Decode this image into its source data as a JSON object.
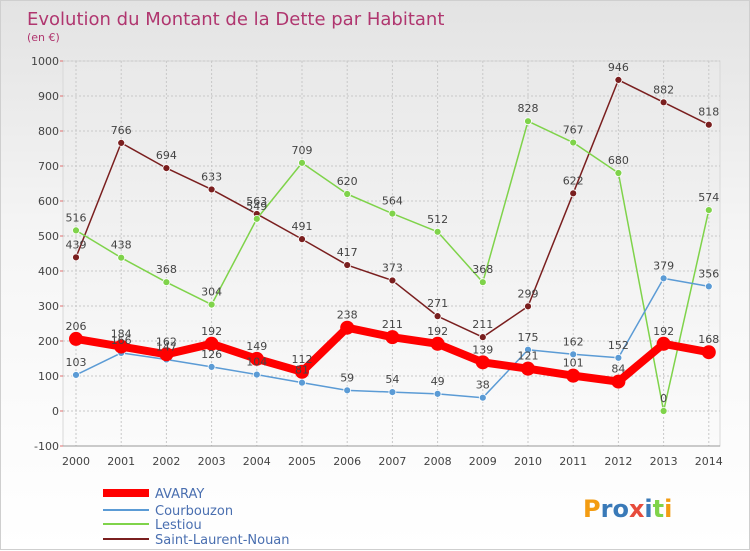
{
  "chart_data": {
    "type": "line",
    "title": "Evolution du Montant de la Dette par Habitant",
    "subtitle": "(en €)",
    "x": [
      "2000",
      "2001",
      "2002",
      "2003",
      "2004",
      "2005",
      "2006",
      "2007",
      "2008",
      "2009",
      "2010",
      "2011",
      "2012",
      "2013",
      "2014"
    ],
    "ylim": [
      -100,
      1000
    ],
    "yticks": [
      "-100",
      "0",
      "100",
      "200",
      "300",
      "400",
      "500",
      "600",
      "700",
      "800",
      "900",
      "1000"
    ],
    "grid": true,
    "legend_position": "bottom-left",
    "series": [
      {
        "name": "AVARAY",
        "color": "#ff0000",
        "values": [
          206,
          184,
          162,
          192,
          149,
          112,
          238,
          211,
          192,
          139,
          121,
          101,
          84,
          192,
          168
        ]
      },
      {
        "name": "Courbouzon",
        "color": "#5b9bd5",
        "values": [
          103,
          166,
          147,
          126,
          104,
          81,
          59,
          54,
          49,
          38,
          175,
          162,
          152,
          379,
          356
        ]
      },
      {
        "name": "Lestiou",
        "color": "#7fd34a",
        "values": [
          516,
          438,
          368,
          304,
          549,
          709,
          620,
          564,
          512,
          368,
          828,
          767,
          680,
          0,
          574
        ]
      },
      {
        "name": "Saint-Laurent-Nouan",
        "color": "#7a1f1f",
        "values": [
          439,
          766,
          694,
          633,
          563,
          491,
          417,
          373,
          271,
          211,
          299,
          622,
          946,
          882,
          818
        ]
      }
    ]
  },
  "logo": {
    "text": "Proxiti"
  }
}
